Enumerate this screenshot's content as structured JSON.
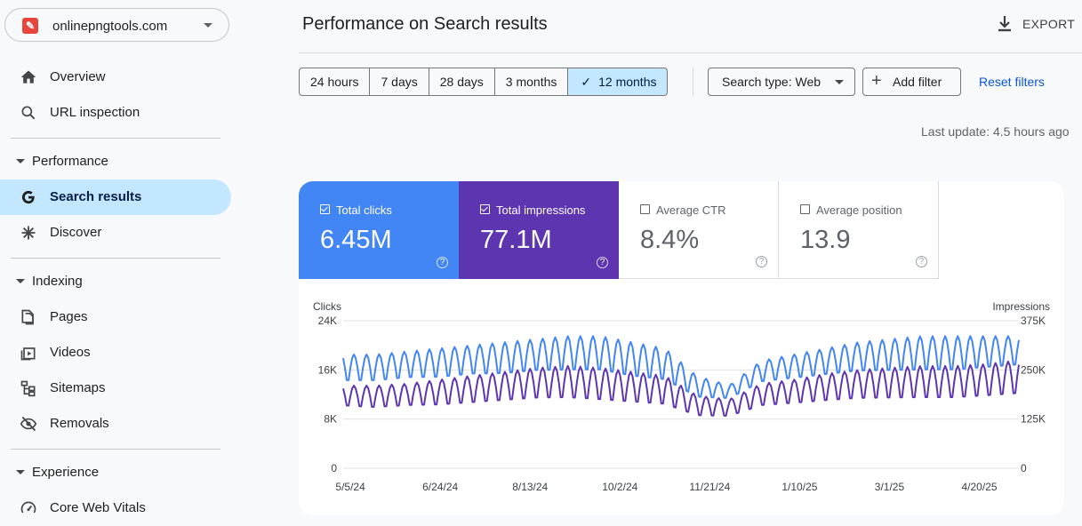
{
  "property": {
    "name": "onlinepngtools.com"
  },
  "sidebar": {
    "items": [
      {
        "label": "Overview"
      },
      {
        "label": "URL inspection"
      }
    ],
    "sections": [
      {
        "label": "Performance",
        "items": [
          {
            "label": "Search results"
          },
          {
            "label": "Discover"
          }
        ]
      },
      {
        "label": "Indexing",
        "items": [
          {
            "label": "Pages"
          },
          {
            "label": "Videos"
          },
          {
            "label": "Sitemaps"
          },
          {
            "label": "Removals"
          }
        ]
      },
      {
        "label": "Experience",
        "items": [
          {
            "label": "Core Web Vitals"
          }
        ]
      }
    ]
  },
  "header": {
    "title": "Performance on Search results",
    "export_label": "EXPORT"
  },
  "filters": {
    "ranges": [
      "24 hours",
      "7 days",
      "28 days",
      "3 months",
      "12 months"
    ],
    "selected_range": "12 months",
    "search_type": "Search type: Web",
    "add_filter": "Add filter",
    "reset": "Reset filters",
    "last_update": "Last update: 4.5 hours ago"
  },
  "metrics": [
    {
      "label": "Total clicks",
      "value": "6.45M",
      "checked": true,
      "color": "#4285f4"
    },
    {
      "label": "Total impressions",
      "value": "77.1M",
      "checked": true,
      "color": "#5e35b1"
    },
    {
      "label": "Average CTR",
      "value": "8.4%",
      "checked": false
    },
    {
      "label": "Average position",
      "value": "13.9",
      "checked": false
    }
  ],
  "chart_data": {
    "type": "line",
    "left_axis": {
      "label": "Clicks",
      "ticks": [
        "0",
        "8K",
        "16K",
        "24K"
      ],
      "ylim": [
        0,
        24000
      ]
    },
    "right_axis": {
      "label": "Impressions",
      "ticks": [
        "0",
        "125K",
        "250K",
        "375K"
      ],
      "ylim": [
        0,
        375000
      ]
    },
    "x_ticks": [
      "5/5/24",
      "6/24/24",
      "8/13/24",
      "10/2/24",
      "11/21/24",
      "1/10/25",
      "3/1/25",
      "4/20/25"
    ],
    "x_range": [
      "2024-05-01",
      "2025-05-12"
    ],
    "series": [
      {
        "name": "Total clicks",
        "color": "#4285f4",
        "axis": "left",
        "weekday_peak": [
          18500,
          18500,
          19000,
          19500,
          20000,
          20500,
          21000,
          21500,
          21500,
          20500,
          19500,
          15000,
          13500,
          17500,
          18500,
          19500,
          20500,
          21000,
          21500,
          21500,
          21500,
          21500
        ],
        "weekend_low": [
          13500,
          13500,
          14000,
          14000,
          14500,
          14500,
          15000,
          15000,
          15000,
          14000,
          13500,
          11000,
          11000,
          13500,
          14000,
          14500,
          15000,
          15000,
          15000,
          15000,
          15500,
          16000
        ]
      },
      {
        "name": "Total impressions",
        "color": "#5e35b1",
        "axis": "right",
        "weekday_peak": [
          210000,
          210000,
          215000,
          225000,
          235000,
          245000,
          255000,
          260000,
          255000,
          245000,
          235000,
          185000,
          175000,
          215000,
          225000,
          240000,
          250000,
          255000,
          260000,
          260000,
          265000,
          275000
        ],
        "weekend_low": [
          150000,
          145000,
          150000,
          150000,
          155000,
          160000,
          165000,
          165000,
          160000,
          155000,
          150000,
          125000,
          125000,
          150000,
          155000,
          160000,
          165000,
          165000,
          165000,
          165000,
          170000,
          175000
        ]
      }
    ]
  }
}
